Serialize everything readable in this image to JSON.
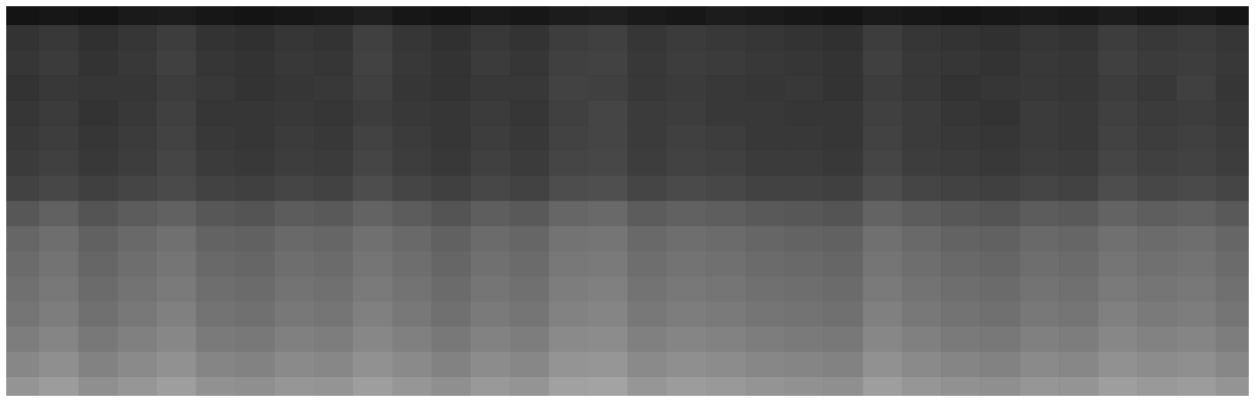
{
  "chart_data": {
    "type": "heatmap",
    "tick_labels": false,
    "color": "#ffffff",
    "zlim": [
      0,
      100
    ],
    "cells": [
      [
        8,
        9,
        8,
        10,
        11,
        9,
        8,
        9,
        10,
        12,
        9,
        8,
        10,
        9,
        11,
        12,
        10,
        9,
        11,
        10,
        9,
        8,
        10,
        9,
        8,
        9,
        10,
        9,
        11,
        9,
        10,
        8
      ],
      [
        20,
        22,
        19,
        21,
        24,
        20,
        19,
        21,
        20,
        25,
        21,
        19,
        22,
        20,
        24,
        25,
        21,
        23,
        22,
        21,
        20,
        19,
        24,
        21,
        20,
        19,
        21,
        20,
        24,
        22,
        23,
        21
      ],
      [
        21,
        23,
        20,
        22,
        25,
        21,
        20,
        22,
        21,
        26,
        22,
        20,
        23,
        21,
        25,
        26,
        22,
        24,
        23,
        22,
        21,
        20,
        25,
        22,
        21,
        20,
        22,
        21,
        25,
        23,
        24,
        22
      ],
      [
        20,
        22,
        21,
        21,
        24,
        22,
        20,
        21,
        22,
        25,
        21,
        20,
        22,
        22,
        26,
        25,
        22,
        23,
        22,
        21,
        22,
        20,
        24,
        22,
        20,
        21,
        22,
        21,
        24,
        22,
        25,
        21
      ],
      [
        21,
        23,
        20,
        22,
        25,
        21,
        21,
        22,
        21,
        24,
        22,
        21,
        23,
        21,
        25,
        27,
        23,
        24,
        22,
        22,
        21,
        21,
        25,
        23,
        21,
        20,
        23,
        22,
        25,
        23,
        24,
        22
      ],
      [
        22,
        24,
        21,
        23,
        26,
        22,
        21,
        23,
        22,
        26,
        23,
        21,
        24,
        22,
        26,
        27,
        23,
        25,
        24,
        22,
        22,
        21,
        26,
        23,
        22,
        21,
        23,
        22,
        26,
        24,
        25,
        23
      ],
      [
        23,
        25,
        22,
        24,
        27,
        23,
        22,
        24,
        23,
        27,
        24,
        22,
        25,
        23,
        27,
        28,
        24,
        26,
        25,
        23,
        23,
        22,
        27,
        24,
        23,
        22,
        24,
        23,
        27,
        25,
        26,
        24
      ],
      [
        26,
        28,
        25,
        27,
        29,
        26,
        25,
        27,
        26,
        30,
        27,
        25,
        28,
        26,
        30,
        31,
        27,
        29,
        28,
        26,
        26,
        25,
        30,
        27,
        26,
        25,
        27,
        26,
        30,
        28,
        29,
        27
      ],
      [
        34,
        38,
        33,
        36,
        38,
        34,
        33,
        36,
        35,
        39,
        36,
        33,
        37,
        35,
        40,
        41,
        36,
        38,
        37,
        35,
        34,
        33,
        39,
        36,
        34,
        33,
        36,
        35,
        39,
        37,
        38,
        35
      ],
      [
        40,
        43,
        38,
        41,
        44,
        39,
        38,
        41,
        40,
        44,
        41,
        38,
        42,
        40,
        45,
        46,
        41,
        43,
        42,
        40,
        39,
        38,
        44,
        41,
        39,
        38,
        41,
        40,
        44,
        42,
        43,
        40
      ],
      [
        42,
        45,
        40,
        43,
        46,
        41,
        40,
        43,
        42,
        46,
        43,
        40,
        44,
        42,
        47,
        48,
        43,
        45,
        44,
        42,
        41,
        40,
        46,
        43,
        41,
        40,
        43,
        42,
        46,
        44,
        45,
        42
      ],
      [
        44,
        47,
        42,
        45,
        48,
        43,
        42,
        45,
        44,
        48,
        45,
        42,
        46,
        44,
        49,
        50,
        45,
        47,
        46,
        44,
        43,
        42,
        48,
        45,
        43,
        42,
        45,
        44,
        48,
        46,
        47,
        44
      ],
      [
        46,
        49,
        44,
        47,
        50,
        45,
        44,
        47,
        46,
        50,
        47,
        44,
        48,
        46,
        51,
        52,
        47,
        49,
        48,
        46,
        45,
        44,
        50,
        47,
        45,
        44,
        47,
        46,
        50,
        48,
        49,
        46
      ],
      [
        49,
        52,
        47,
        50,
        53,
        48,
        47,
        50,
        49,
        53,
        50,
        47,
        51,
        49,
        54,
        55,
        50,
        52,
        51,
        49,
        48,
        47,
        53,
        50,
        48,
        47,
        50,
        49,
        53,
        51,
        52,
        49
      ],
      [
        53,
        56,
        51,
        54,
        57,
        52,
        51,
        54,
        53,
        57,
        54,
        51,
        55,
        53,
        58,
        59,
        54,
        56,
        55,
        53,
        52,
        51,
        57,
        54,
        52,
        51,
        54,
        53,
        57,
        55,
        56,
        53
      ],
      [
        58,
        61,
        56,
        59,
        62,
        57,
        56,
        59,
        58,
        62,
        59,
        56,
        60,
        58,
        63,
        64,
        59,
        61,
        60,
        58,
        57,
        56,
        62,
        59,
        57,
        56,
        59,
        58,
        62,
        60,
        61,
        58
      ]
    ]
  }
}
